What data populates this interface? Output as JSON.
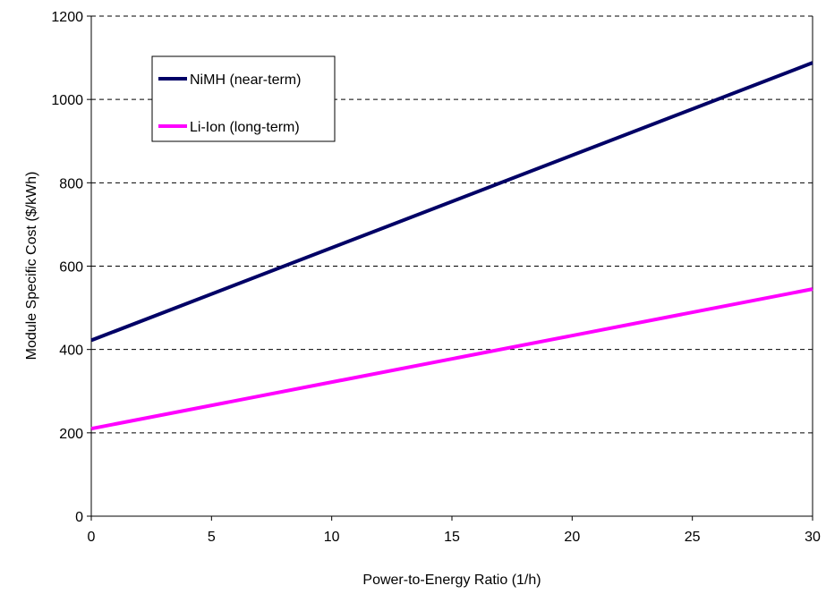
{
  "chart_data": {
    "type": "line",
    "title": "",
    "xlabel": "Power-to-Energy Ratio (1/h)",
    "ylabel": "Module Specific Cost ($/kWh)",
    "xlim": [
      0,
      30
    ],
    "ylim": [
      0,
      1200
    ],
    "x_ticks": [
      "0",
      "5",
      "10",
      "15",
      "20",
      "25",
      "30"
    ],
    "y_ticks": [
      "0",
      "200",
      "400",
      "600",
      "800",
      "1000",
      "1200"
    ],
    "grid": "horizontal dashed",
    "legend_position": "top-left",
    "series": [
      {
        "name": "NiMH (near-term)",
        "color": "#000066",
        "x": [
          0,
          30
        ],
        "y": [
          422,
          1088
        ]
      },
      {
        "name": "Li-Ion (long-term)",
        "color": "#ff00ff",
        "x": [
          0,
          30
        ],
        "y": [
          210,
          545
        ]
      }
    ]
  }
}
